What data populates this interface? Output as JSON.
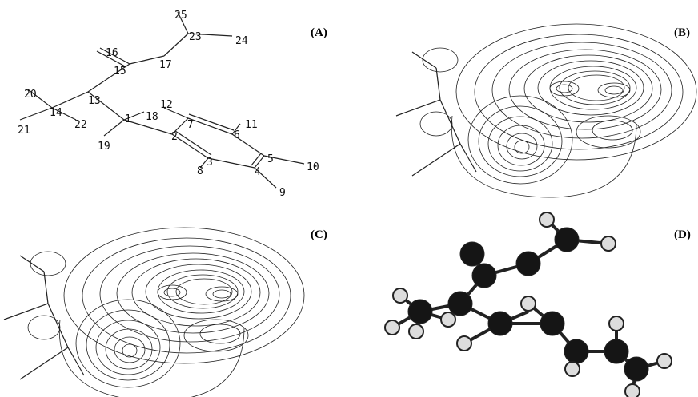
{
  "panels": [
    {
      "label": "(A)"
    },
    {
      "label": "(B)"
    },
    {
      "label": "(C)"
    },
    {
      "label": "(D)"
    }
  ],
  "atoms": [
    "1",
    "2",
    "3",
    "4",
    "5",
    "6",
    "7",
    "8",
    "9",
    "10",
    "11",
    "12",
    "13",
    "14",
    "15",
    "16",
    "17",
    "18",
    "19",
    "20",
    "21",
    "22",
    "23",
    "24",
    "25"
  ]
}
